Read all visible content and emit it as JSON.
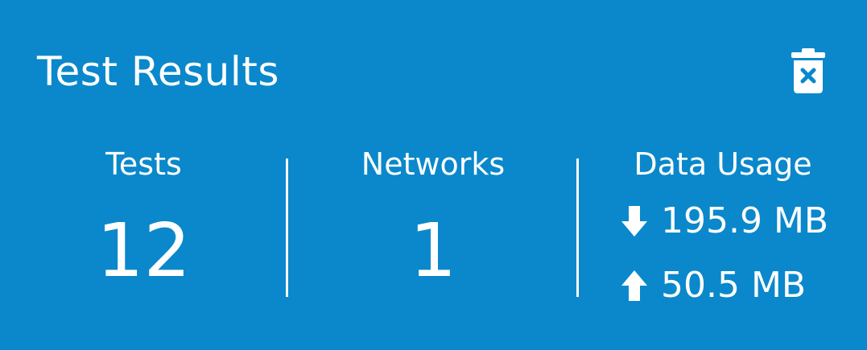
{
  "header": {
    "title": "Test Results",
    "clear_icon": "trash-x-icon"
  },
  "stats": {
    "tests": {
      "label": "Tests",
      "value": "12"
    },
    "networks": {
      "label": "Networks",
      "value": "1"
    },
    "data_usage": {
      "label": "Data Usage",
      "download": {
        "icon": "arrow-down-icon",
        "value": "195.9 MB"
      },
      "upload": {
        "icon": "arrow-up-icon",
        "value": "50.5 MB"
      }
    }
  },
  "colors": {
    "background": "#0a88cb",
    "text": "#ffffff",
    "trash_x": "#0a88cb"
  }
}
